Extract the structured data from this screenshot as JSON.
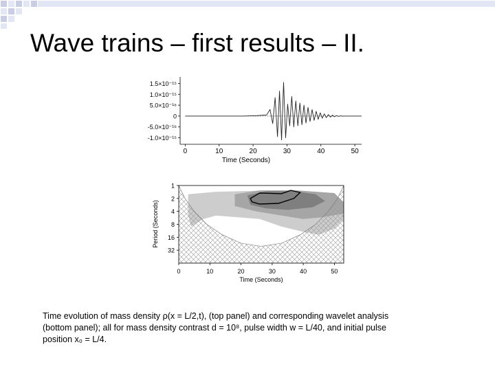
{
  "slide": {
    "title": "Wave trains – first results – II."
  },
  "theme": {
    "accent": "#e3e6f4",
    "accent_dark": "#c9cde6",
    "contour_dark": "#7f7f7f",
    "contour_mid": "#a6a6a6",
    "contour_light": "#cdcdcd",
    "background": "#ffffff"
  },
  "chart_data": [
    {
      "type": "line",
      "title": "",
      "xlabel": "Time (Seconds)",
      "ylabel": "",
      "xlim": [
        -1.5,
        52
      ],
      "ylim": [
        -1.3e-15,
        1.8e-15
      ],
      "x_ticks": [
        0,
        10,
        20,
        30,
        40,
        50
      ],
      "x_tick_labels": [
        "0",
        "10",
        "20",
        "30",
        "40",
        "50"
      ],
      "y_ticks": [
        1.5e-15,
        1e-15,
        5e-16,
        0,
        -5e-16,
        -1e-15
      ],
      "y_tick_labels": [
        "1.5×10⁻¹⁵",
        "1.0×10⁻¹⁵",
        "5.0×10⁻¹⁶",
        "0",
        "-5.0×10⁻¹⁶",
        "-1.0×10⁻¹⁵"
      ],
      "grid": false,
      "series": [
        {
          "x": [
            0,
            17,
            21,
            24,
            25,
            25.8,
            26.5,
            27.2,
            27.8,
            28.4,
            29,
            29.6,
            30.2,
            30.8,
            31.4,
            32,
            32.6,
            33.2,
            33.8,
            34.4,
            35,
            35.6,
            36.2,
            36.8,
            37.4,
            38,
            38.6,
            39.2,
            39.8,
            40.4,
            41,
            41.6,
            42.2,
            42.8,
            43.4,
            44,
            44.6,
            45.2,
            45.8,
            46.4,
            47,
            48,
            52
          ],
          "y": [
            0,
            0,
            2e-17,
            5e-17,
            3e-16,
            -3.5e-16,
            8.5e-16,
            -9.5e-16,
            1.15e-15,
            -1.1e-15,
            1.55e-15,
            -1e-15,
            5.5e-16,
            -4.5e-16,
            9e-16,
            -5e-16,
            7e-16,
            -4.5e-16,
            6e-16,
            -4e-16,
            5e-16,
            -3.2e-16,
            4e-16,
            -2.5e-16,
            3e-16,
            -2e-16,
            2.2e-16,
            -1.5e-16,
            1.5e-16,
            -1e-16,
            1e-16,
            -7e-17,
            7e-17,
            -5e-17,
            4e-17,
            -3e-17,
            2e-17,
            -1.5e-17,
            1e-17,
            -5e-18,
            0,
            0,
            0
          ]
        }
      ]
    },
    {
      "type": "heatmap",
      "title": "",
      "xlabel": "Time (Seconds)",
      "ylabel": "Period (Seconds)",
      "xlim": [
        0,
        53
      ],
      "ylim_periods": [
        1,
        64
      ],
      "log2_y": true,
      "x_ticks": [
        0,
        10,
        20,
        30,
        40,
        50
      ],
      "x_tick_labels": [
        "0",
        "10",
        "20",
        "30",
        "40",
        "50"
      ],
      "y_ticks": [
        1,
        2,
        4,
        8,
        16,
        32
      ],
      "y_tick_labels": [
        "1",
        "2",
        "4",
        "8",
        "16",
        "32"
      ],
      "grid": false,
      "regions": [
        {
          "level": "light",
          "points": [
            [
              3,
              1.6
            ],
            [
              12,
              1.4
            ],
            [
              30,
              1.3
            ],
            [
              48,
              1.5
            ],
            [
              53,
              3
            ],
            [
              53,
              6
            ],
            [
              50,
              10
            ],
            [
              45,
              14
            ],
            [
              40,
              12
            ],
            [
              33,
              9
            ],
            [
              26,
              6
            ],
            [
              12,
              5
            ],
            [
              8,
              6
            ],
            [
              4,
              9
            ],
            [
              3,
              5
            ]
          ]
        },
        {
          "level": "mid",
          "points": [
            [
              18,
              1.6
            ],
            [
              26,
              1.3
            ],
            [
              38,
              1.3
            ],
            [
              50,
              1.5
            ],
            [
              53,
              2.5
            ],
            [
              53,
              4.5
            ],
            [
              46,
              5.5
            ],
            [
              40,
              6
            ],
            [
              33,
              5
            ],
            [
              25,
              4
            ],
            [
              18,
              3
            ]
          ]
        },
        {
          "level": "dark",
          "points": [
            [
              22,
              1.7
            ],
            [
              28,
              1.35
            ],
            [
              37,
              1.35
            ],
            [
              44,
              1.6
            ],
            [
              47,
              2.3
            ],
            [
              43,
              3.2
            ],
            [
              35,
              3.7
            ],
            [
              28,
              3.4
            ],
            [
              23,
              2.8
            ]
          ]
        },
        {
          "level": "darkest",
          "points": [
            [
              23,
              2.0
            ],
            [
              26,
              1.5
            ],
            [
              33,
              1.55
            ],
            [
              36,
              1.3
            ],
            [
              39,
              1.45
            ],
            [
              37,
              2.0
            ],
            [
              32,
              2.6
            ],
            [
              26,
              2.7
            ],
            [
              23.5,
              2.4
            ]
          ]
        }
      ]
    }
  ],
  "caption": {
    "line1": "Time evolution of mass density ρ(x = L/2,t), (top panel) and corresponding wavelet analysis",
    "line2": "(bottom panel); all for mass density contrast d = 10⁸, pulse width w = L/40, and initial pulse",
    "line3": "position x₀ = L/4."
  }
}
